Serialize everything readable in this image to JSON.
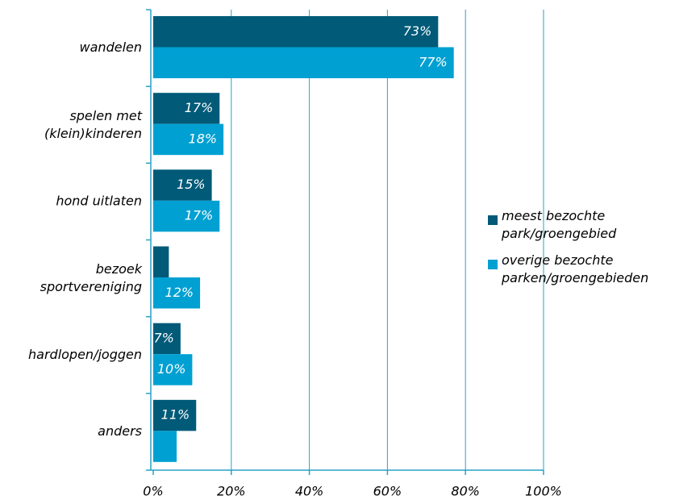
{
  "chart_data": {
    "type": "hbar",
    "categories": [
      "wandelen",
      "spelen met\n(klein)kinderen",
      "hond uitlaten",
      "bezoek\nsportvereniging",
      "hardlopen/joggen",
      "anders"
    ],
    "series": [
      {
        "name": "meest bezochte\npark/groengebied",
        "color": "#005a78",
        "values": [
          73,
          17,
          15,
          4,
          7,
          11
        ],
        "value_labels": [
          "73%",
          "17%",
          "15%",
          null,
          "7%",
          "11%"
        ]
      },
      {
        "name": "overige bezochte\nparken/groengebieden",
        "color": "#00a0d2",
        "values": [
          77,
          18,
          17,
          12,
          10,
          6
        ],
        "value_labels": [
          "77%",
          "18%",
          "17%",
          "12%",
          "10%",
          null
        ]
      }
    ],
    "xlim": [
      0,
      100
    ],
    "xticks": [
      {
        "value": 0,
        "label": "0%"
      },
      {
        "value": 20,
        "label": "20%"
      },
      {
        "value": 40,
        "label": "40%"
      },
      {
        "value": 60,
        "label": "60%"
      },
      {
        "value": 80,
        "label": "80%"
      },
      {
        "value": 100,
        "label": "100%"
      }
    ],
    "grid": true,
    "legend": "right"
  }
}
